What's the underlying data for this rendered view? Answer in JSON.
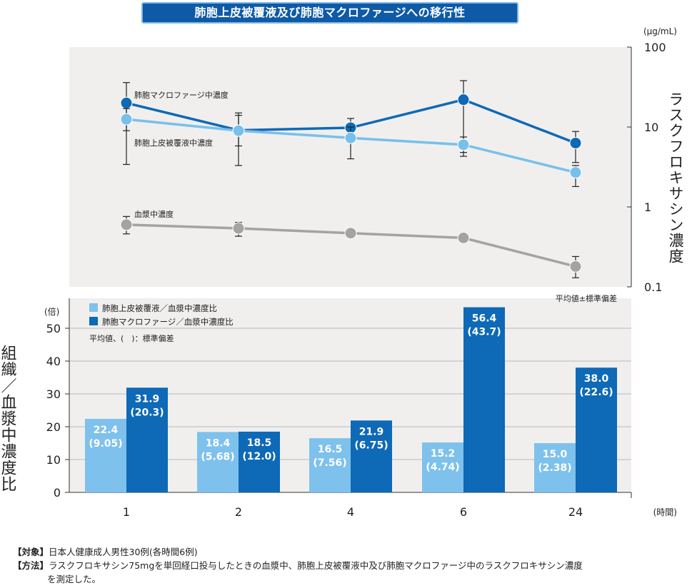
{
  "title": "肺胞上皮被覆液及び肺胞マクロファージへの移行性",
  "chart_data": [
    {
      "type": "line",
      "yscale": "log",
      "ylim": [
        0.1,
        100
      ],
      "y_unit": "(μg/mL)",
      "ylabel": "ラスクフロキサシン濃度",
      "yticks": [
        "100",
        "10",
        "1",
        "0.1"
      ],
      "categories": [
        "1",
        "2",
        "4",
        "6",
        "24"
      ],
      "note": "平均値±標準偏差",
      "series": [
        {
          "name": "肺胞マクロファージ中濃度",
          "color": "#0e69b6",
          "values": [
            20.0,
            9.1,
            9.8,
            22.0,
            6.3
          ],
          "err_low": [
            9.0,
            5.8,
            7.5,
            4.8,
            3.6
          ],
          "err_high": [
            36.0,
            15.0,
            12.8,
            38.0,
            8.8
          ]
        },
        {
          "name": "肺胞上皮被覆液中濃度",
          "color": "#78c0ec",
          "values": [
            12.5,
            9.0,
            7.3,
            6.0,
            2.7
          ],
          "err_low": [
            3.4,
            3.3,
            4.0,
            4.3,
            1.8
          ],
          "err_high": [
            17.0,
            14.0,
            10.0,
            7.5,
            3.3
          ]
        },
        {
          "name": "血漿中濃度",
          "color": "#a3a3a3",
          "values": [
            0.6,
            0.54,
            0.47,
            0.41,
            0.18
          ],
          "err_low": [
            0.46,
            0.43,
            0.47,
            0.41,
            0.13
          ],
          "err_high": [
            0.76,
            0.64,
            0.47,
            0.41,
            0.24
          ]
        }
      ]
    },
    {
      "type": "bar",
      "ylim": [
        0,
        60
      ],
      "y_unit": "(倍)",
      "ylabel": "組織／血漿中濃度比",
      "yticks": [
        "0",
        "10",
        "20",
        "30",
        "40",
        "50"
      ],
      "categories": [
        "1",
        "2",
        "4",
        "6",
        "24"
      ],
      "x_unit": "(時間)",
      "legend_note": "平均値、(　)：標準偏差",
      "series": [
        {
          "name": "肺胞上皮被覆液／血漿中濃度比",
          "color": "#7ec1ec",
          "values": [
            22.4,
            18.4,
            16.5,
            15.2,
            15.0
          ],
          "sd_labels": [
            "(9.05)",
            "(5.68)",
            "(7.56)",
            "(4.74)",
            "(2.38)"
          ]
        },
        {
          "name": "肺胞マクロファージ／血漿中濃度比",
          "color": "#0e69b6",
          "values": [
            31.9,
            18.5,
            21.9,
            56.4,
            38.0
          ],
          "sd_labels": [
            "(20.3)",
            "(12.0)",
            "(6.75)",
            "(43.7)",
            "(22.6)"
          ]
        }
      ]
    }
  ],
  "notes": {
    "subject_key": "【対象】",
    "subject_text": "日本人健康成人男性30例(各時間6例)",
    "method_key": "【方法】",
    "method_text": "ラスクフロキサシン75mgを単回経口投与したときの血漿中、肺胞上皮被覆液中及び肺胞マクロファージ中のラスクフロキサシン濃度",
    "method_text2": "を測定した。"
  }
}
